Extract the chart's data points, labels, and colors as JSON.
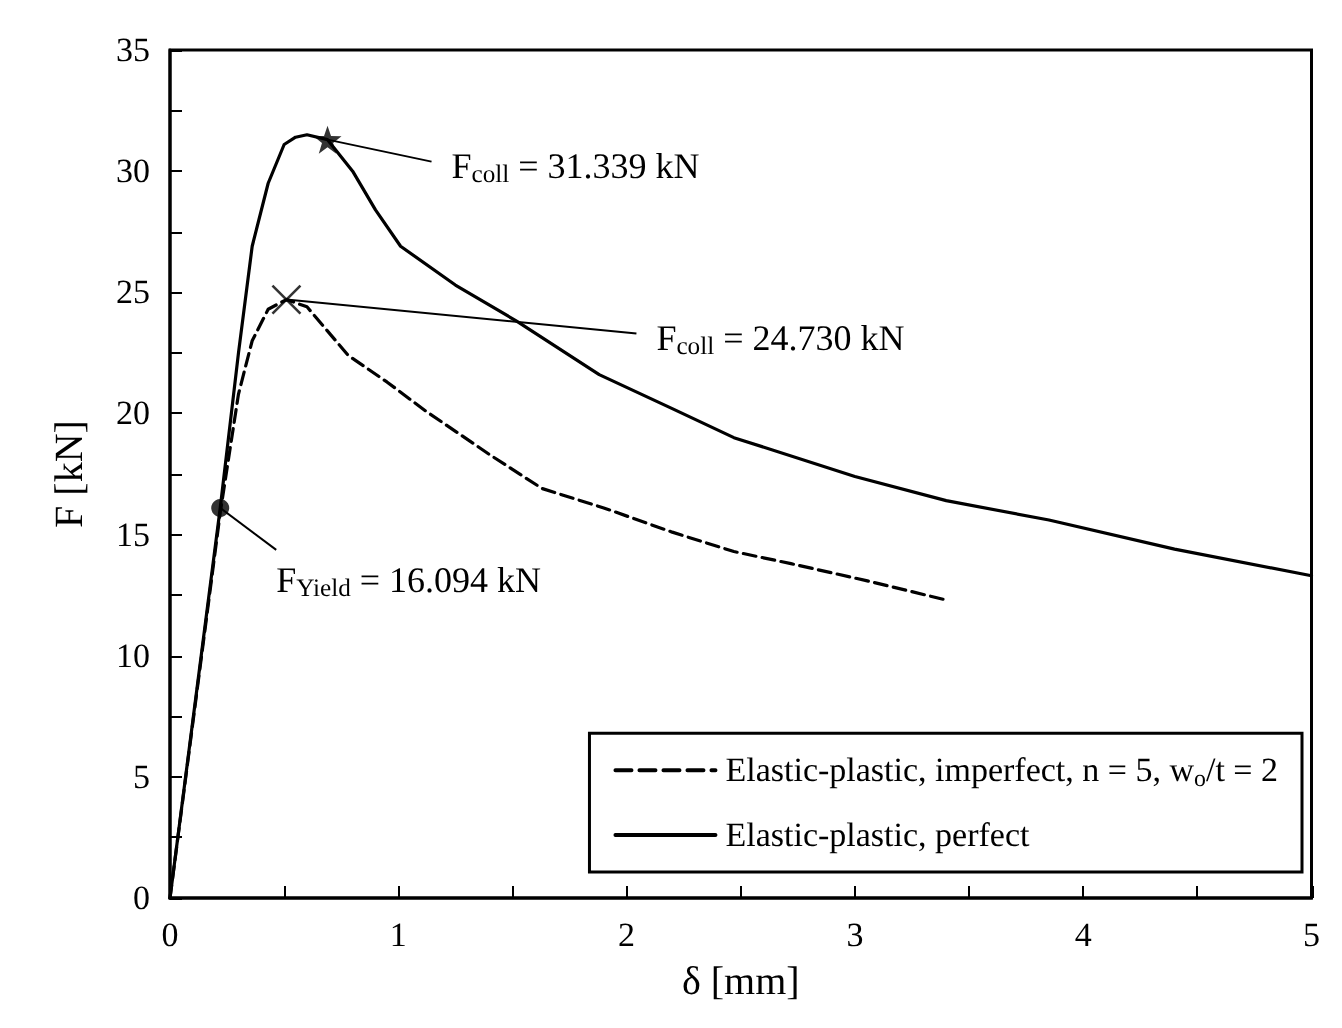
{
  "chart_data": {
    "type": "line",
    "xlabel": "δ [mm]",
    "ylabel": "F [kN]",
    "xlim": [
      0,
      5
    ],
    "xticks": [
      0,
      {
        "value": 0.5,
        "label": null
      },
      1,
      {
        "value": 1.5,
        "label": null
      },
      2,
      {
        "value": 2.5,
        "label": null
      },
      3,
      {
        "value": 3.5,
        "label": null
      },
      4,
      {
        "value": 4.5,
        "label": null
      },
      5
    ],
    "ylim": [
      0,
      35
    ],
    "yticks": [
      0,
      {
        "value": 2.5,
        "label": null
      },
      5,
      {
        "value": 7.5,
        "label": null
      },
      10,
      {
        "value": 12.5,
        "label": null
      },
      15,
      {
        "value": 17.5,
        "label": null
      },
      20,
      {
        "value": 22.5,
        "label": null
      },
      25,
      {
        "value": 27.5,
        "label": null
      },
      30,
      {
        "value": 32.5,
        "label": null
      },
      35
    ],
    "legend": "bottom right",
    "series": [
      {
        "name": "Elastic-plastic, imperfect, n = 5, w$_{o}$/t = 2",
        "color": "#000000",
        "line_style": "dashed",
        "x": [
          0,
          0.22,
          0.3,
          0.36,
          0.43,
          0.51,
          0.6,
          0.78,
          0.95,
          1.12,
          1.4,
          1.63,
          1.9,
          2.2,
          2.47,
          2.72,
          3.05,
          3.4
        ],
        "values": [
          0,
          15.9,
          20.8,
          23.0,
          24.3,
          24.7,
          24.4,
          22.4,
          21.3,
          20.1,
          18.3,
          16.9,
          16.1,
          15.1,
          14.3,
          13.8,
          13.1,
          12.3
        ]
      },
      {
        "name": "Elastic-plastic, perfect",
        "color": "#000000",
        "line_style": "solid",
        "x": [
          0,
          0.22,
          0.3,
          0.36,
          0.43,
          0.5,
          0.55,
          0.6,
          0.69,
          0.8,
          0.9,
          1.01,
          1.25,
          1.52,
          1.88,
          2.2,
          2.47,
          3.0,
          3.4,
          3.85,
          4.4,
          5.0
        ],
        "values": [
          0,
          16.1,
          22.5,
          26.9,
          29.5,
          31.1,
          31.4,
          31.5,
          31.3,
          30.0,
          28.4,
          26.9,
          25.3,
          23.8,
          21.6,
          20.2,
          19.0,
          17.4,
          16.4,
          15.6,
          14.4,
          13.3
        ]
      },
      {
        "type": "scatter",
        "marker": "circle",
        "color": "#000000",
        "x": [
          0.22
        ],
        "values": [
          16.1
        ]
      },
      {
        "type": "scatter",
        "marker": "cross",
        "color": "#000000",
        "x": [
          0.51
        ],
        "values": [
          24.7
        ]
      },
      {
        "type": "scatter",
        "marker": "star",
        "color": "#000000",
        "x": [
          0.69
        ],
        "values": [
          31.3
        ]
      }
    ],
    "annotations": [
      {
        "text": "F$_{coll}$ = 31.339 kN",
        "x": 0.69,
        "y": 31.3
      },
      {
        "text": "F$_{coll}$ = 24.730 kN",
        "x": 0.51,
        "y": 24.7
      },
      {
        "text": "F$_{Yield}$ = 16.094 kN",
        "x": 0.22,
        "y": 16.1
      }
    ]
  }
}
